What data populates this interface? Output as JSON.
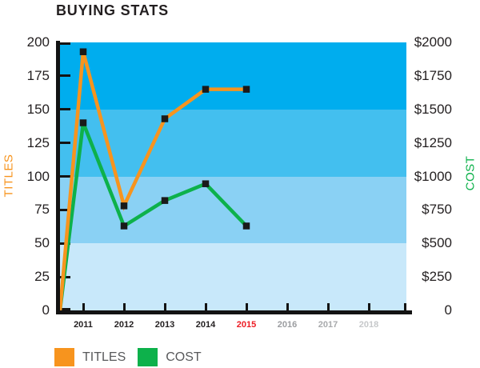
{
  "title": "BUYING STATS",
  "colors": {
    "orange": "#F7941E",
    "green": "#0DB14B",
    "axis": "#131313",
    "tick_label": "#231F20",
    "legend_text": "#58595B",
    "marker": "#1A1A1A",
    "year_highlight_red": "#ED1C24",
    "bands_top_to_bottom": [
      "#00ADEE",
      "#43BFEF",
      "#8AD1F4",
      "#C8E8FA"
    ]
  },
  "left_axis": {
    "label": "TITLES",
    "ticks": [
      "200",
      "175",
      "150",
      "125",
      "100",
      "75",
      "50",
      "25",
      "0"
    ]
  },
  "right_axis": {
    "label": "COST",
    "ticks": [
      "$2000",
      "$1750",
      "$1500",
      "$1250",
      "$1000",
      "$750",
      "$500",
      "$250",
      "0"
    ]
  },
  "x_axis": {
    "years": [
      {
        "label": "2011",
        "color": "#231F20"
      },
      {
        "label": "2012",
        "color": "#231F20"
      },
      {
        "label": "2013",
        "color": "#231F20"
      },
      {
        "label": "2014",
        "color": "#231F20"
      },
      {
        "label": "2015",
        "color": "#ED1C24"
      },
      {
        "label": "2016",
        "color": "#9B9DA0"
      },
      {
        "label": "2017",
        "color": "#A8AAAC"
      },
      {
        "label": "2018",
        "color": "#C6C8CA"
      }
    ]
  },
  "legend": {
    "items": [
      {
        "label": "TITLES",
        "color": "#F7941E"
      },
      {
        "label": "COST",
        "color": "#0DB14B"
      }
    ]
  },
  "chart_data": {
    "type": "line",
    "title": "BUYING STATS",
    "x": [
      2011,
      2012,
      2013,
      2014,
      2015
    ],
    "x_axis_years_shown": [
      2011,
      2012,
      2013,
      2014,
      2015,
      2016,
      2017,
      2018
    ],
    "series": [
      {
        "name": "TITLES",
        "axis": "left",
        "color": "#F7941E",
        "values": [
          193,
          78,
          143,
          165,
          165
        ],
        "starts_at_origin": true,
        "marker": "black-square"
      },
      {
        "name": "COST",
        "axis": "right",
        "color": "#0DB14B",
        "values": [
          1400,
          630,
          820,
          945,
          630
        ],
        "starts_at_origin": true,
        "marker": "black-square"
      }
    ],
    "left_axis": {
      "label": "TITLES",
      "range": [
        0,
        200
      ],
      "tick_step": 25
    },
    "right_axis": {
      "label": "COST",
      "range": [
        0,
        2000
      ],
      "tick_step": 250,
      "tick_prefix": "$"
    },
    "background_bands": {
      "boundaries_left_axis": [
        0,
        50,
        100,
        150,
        200
      ],
      "colors_top_to_bottom": [
        "#00ADEE",
        "#43BFEF",
        "#8AD1F4",
        "#C8E8FA"
      ]
    },
    "grid": false,
    "legend_position": "bottom-left"
  }
}
